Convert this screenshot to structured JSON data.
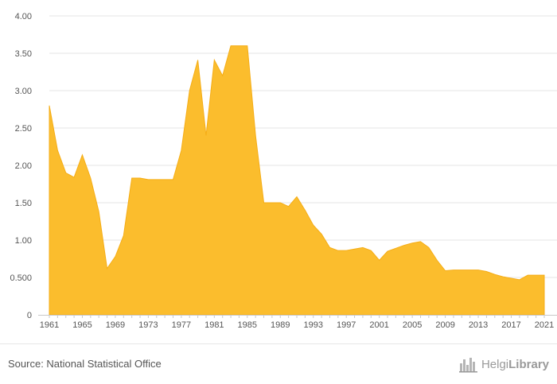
{
  "chart_data": {
    "type": "area",
    "color": "#fbbd2d",
    "edge_color": "#f5ad16",
    "grid": true,
    "ylim": [
      0,
      4.0
    ],
    "y_ticks": [
      {
        "value": 0,
        "label": "0"
      },
      {
        "value": 0.5,
        "label": "0.500"
      },
      {
        "value": 1.0,
        "label": "1.00"
      },
      {
        "value": 1.5,
        "label": "1.50"
      },
      {
        "value": 2.0,
        "label": "2.00"
      },
      {
        "value": 2.5,
        "label": "2.50"
      },
      {
        "value": 3.0,
        "label": "3.00"
      },
      {
        "value": 3.5,
        "label": "3.50"
      },
      {
        "value": 4.0,
        "label": "4.00"
      }
    ],
    "x_ticks": [
      "1961",
      "1965",
      "1969",
      "1973",
      "1977",
      "1981",
      "1985",
      "1989",
      "1993",
      "1997",
      "2001",
      "2005",
      "2009",
      "2013",
      "2017",
      "2021"
    ],
    "x": [
      1961,
      1962,
      1963,
      1964,
      1965,
      1966,
      1967,
      1968,
      1969,
      1970,
      1971,
      1972,
      1973,
      1974,
      1975,
      1976,
      1977,
      1978,
      1979,
      1980,
      1981,
      1982,
      1983,
      1984,
      1985,
      1986,
      1987,
      1988,
      1989,
      1990,
      1991,
      1992,
      1993,
      1994,
      1995,
      1996,
      1997,
      1998,
      1999,
      2000,
      2001,
      2002,
      2003,
      2004,
      2005,
      2006,
      2007,
      2008,
      2009,
      2010,
      2011,
      2012,
      2013,
      2014,
      2015,
      2016,
      2017,
      2018,
      2019,
      2020,
      2021
    ],
    "values": [
      2.8,
      2.2,
      1.9,
      1.84,
      2.14,
      1.83,
      1.38,
      0.62,
      0.78,
      1.06,
      1.83,
      1.83,
      1.81,
      1.81,
      1.81,
      1.81,
      2.2,
      3.0,
      3.41,
      2.4,
      3.41,
      3.2,
      3.6,
      3.6,
      3.6,
      2.4,
      1.5,
      1.5,
      1.5,
      1.45,
      1.58,
      1.4,
      1.2,
      1.08,
      0.9,
      0.86,
      0.86,
      0.88,
      0.9,
      0.86,
      0.73,
      0.85,
      0.89,
      0.93,
      0.96,
      0.98,
      0.9,
      0.73,
      0.59,
      0.6,
      0.6,
      0.6,
      0.6,
      0.58,
      0.54,
      0.51,
      0.49,
      0.47,
      0.53,
      0.53,
      0.53
    ]
  },
  "footer": {
    "source": "Source: National Statistical Office",
    "logo_text_light": "Helgi",
    "logo_text_bold": "Library",
    "logo_icon": "city-skyline-icon"
  }
}
